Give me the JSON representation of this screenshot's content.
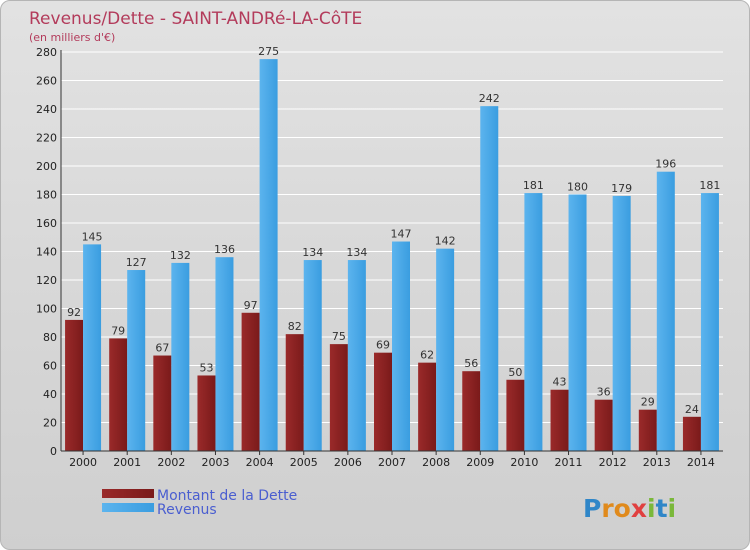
{
  "colors": {
    "debt": "#7a1a1a",
    "revenue": "#3a9de0",
    "title": "#b33b5b",
    "legend_text": "#4a5ed0"
  },
  "logo_text": "Proxiti",
  "chart_data": {
    "type": "bar",
    "title": "Revenus/Dette - SAINT-ANDRé-LA-CôTE",
    "subtitle": "(en milliers d'€)",
    "categories": [
      "2000",
      "2001",
      "2002",
      "2003",
      "2004",
      "2005",
      "2006",
      "2007",
      "2008",
      "2009",
      "2010",
      "2011",
      "2012",
      "2013",
      "2014"
    ],
    "series": [
      {
        "name": "Montant de la Dette",
        "color": "#7a1a1a",
        "values": [
          92,
          79,
          67,
          53,
          97,
          82,
          75,
          69,
          62,
          56,
          50,
          43,
          36,
          29,
          24
        ]
      },
      {
        "name": "Revenus",
        "color": "#3a9de0",
        "values": [
          145,
          127,
          132,
          136,
          275,
          134,
          134,
          147,
          142,
          242,
          181,
          180,
          179,
          196,
          181
        ]
      }
    ],
    "ylim": [
      0,
      280
    ],
    "yticks": [
      0,
      20,
      40,
      60,
      80,
      100,
      120,
      140,
      160,
      180,
      200,
      220,
      240,
      260,
      280
    ],
    "grid": true,
    "legend": "bottom-left",
    "data_labels": true
  }
}
